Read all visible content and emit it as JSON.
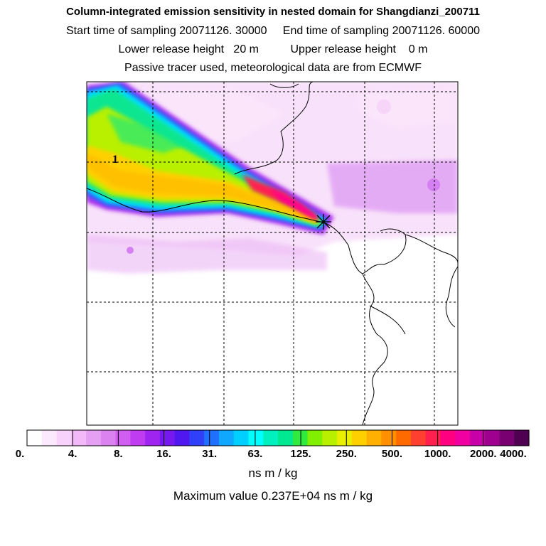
{
  "header": {
    "title": "Column-integrated emission sensitivity in nested domain for Shangdianzi_200711",
    "line2": "Start time of sampling 20071126. 30000     End time of sampling 20071126. 60000",
    "line3": "Lower release height   20 m          Upper release height    0 m",
    "line4": "Passive tracer used, meteorological data are from ECMWF"
  },
  "chart_data": {
    "type": "heatmap",
    "title": "Column-integrated emission sensitivity in nested domain for Shangdianzi_200711",
    "units": "ns m / kg",
    "max_value_text": "Maximum value  0.237E+04 ns m / kg",
    "colorbar_ticks": [
      "0.",
      "4.",
      "8.",
      "16.",
      "31.",
      "63.",
      "125.",
      "250.",
      "500.",
      "1000.",
      "2000.",
      "4000."
    ],
    "colorbar_colors": [
      "#ffffff",
      "#fde9fd",
      "#f9d2fb",
      "#f2b8f7",
      "#e6a0f3",
      "#dc82f0",
      "#d05ef0",
      "#c03cf0",
      "#a024f0",
      "#7818f0",
      "#5018f0",
      "#3040f8",
      "#2070ff",
      "#10a8ff",
      "#00d0ff",
      "#00ffff",
      "#00f0c0",
      "#00e890",
      "#30ea40",
      "#80f000",
      "#b8f000",
      "#e8f000",
      "#ffd000",
      "#ffb000",
      "#ff9000",
      "#ff6a00",
      "#ff4030",
      "#ff2050",
      "#ff0080",
      "#f000a0",
      "#c800a8",
      "#a00090",
      "#780070",
      "#500050"
    ],
    "receptor_marker": "X",
    "contour_label": "1"
  },
  "legend": {
    "unit_label": "ns m / kg",
    "max_label": "Maximum value  0.237E+04 ns m / kg"
  }
}
